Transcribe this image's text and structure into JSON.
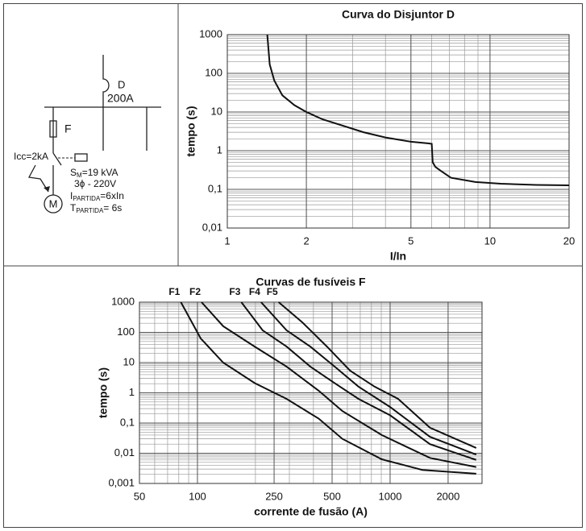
{
  "diagram": {
    "breaker_name": "D",
    "breaker_rating": "200A",
    "fuse_name": "F",
    "short_circuit": "Icc=2kA",
    "s_m": {
      "main": "S",
      "sub": "M",
      "rest": "=19 kVA"
    },
    "supply": "3ϕ - 220V",
    "i_start": {
      "main": "I",
      "sub": "PARTIDA",
      "rest": "=6xIn"
    },
    "t_start": {
      "main": "T",
      "sub": "PARTIDA",
      "rest": "= 6s"
    },
    "motor": "M"
  },
  "chart_data": [
    {
      "type": "line",
      "title": "Curva do Disjuntor D",
      "x_label": "I/In",
      "y_label": "tempo (s)",
      "xlog": true,
      "ylog": true,
      "grid": true,
      "minor_grid": true,
      "xlim": [
        1,
        20
      ],
      "ylim": [
        0.01,
        1000
      ],
      "xticks": [
        1,
        2,
        5,
        10,
        20
      ],
      "yticks": [
        {
          "value": 0.01,
          "label": "0,01"
        },
        {
          "value": 0.1,
          "label": "0,1"
        },
        1,
        10,
        100,
        1000
      ],
      "series": [
        {
          "color": "#111111",
          "x": [
            1.42,
            1.45,
            1.51,
            1.62,
            1.8,
            2,
            2.3,
            3.3,
            4,
            5,
            5.8,
            6,
            6.05,
            6.2,
            6.5,
            7.1,
            8.8,
            11,
            15,
            20
          ],
          "values": [
            1000,
            170,
            65,
            27,
            15,
            10,
            6.5,
            3,
            2.2,
            1.7,
            1.55,
            1.5,
            0.5,
            0.38,
            0.3,
            0.2,
            0.155,
            0.14,
            0.13,
            0.127
          ]
        }
      ]
    },
    {
      "type": "line",
      "title": "Curvas de fusíveis F",
      "x_label": "corrente de fusão (A)",
      "y_label": "tempo (s)",
      "xlog": true,
      "ylog": true,
      "grid": true,
      "minor_grid": true,
      "xlim": [
        50,
        3000
      ],
      "ylim": [
        0.001,
        1000
      ],
      "xticks": [
        50,
        100,
        250,
        500,
        1000,
        2000
      ],
      "yticks": [
        {
          "value": 0.001,
          "label": "0,001"
        },
        {
          "value": 0.01,
          "label": "0,01"
        },
        {
          "value": 0.1,
          "label": "0,1"
        },
        1,
        10,
        100,
        1000
      ],
      "series": [
        {
          "name": "F1",
          "color": "#111111",
          "x": [
            82,
            104,
            136,
            198,
            290,
            426,
            565,
            905,
            1470,
            2800
          ],
          "values": [
            1000,
            63,
            10,
            2.1,
            0.63,
            0.14,
            0.03,
            0.0063,
            0.0028,
            0.0021
          ]
        },
        {
          "name": "F2",
          "color": "#111111",
          "x": [
            105,
            136,
            198,
            290,
            426,
            565,
            905,
            1610,
            2800
          ],
          "values": [
            1000,
            160,
            34,
            7.4,
            1.17,
            0.25,
            0.04,
            0.007,
            0.0035
          ]
        },
        {
          "name": "F3",
          "color": "#111111",
          "x": [
            169,
            218,
            290,
            385,
            515,
            685,
            1000,
            1610,
            2800
          ],
          "values": [
            1000,
            117,
            34,
            7.4,
            2.1,
            0.63,
            0.18,
            0.02,
            0.006
          ]
        },
        {
          "name": "F4",
          "color": "#111111",
          "x": [
            214,
            290,
            385,
            515,
            685,
            1000,
            1610,
            2800
          ],
          "values": [
            1000,
            117,
            34,
            7.4,
            1.6,
            0.34,
            0.035,
            0.009
          ]
        },
        {
          "name": "F5",
          "color": "#111111",
          "x": [
            264,
            350,
            470,
            620,
            830,
            1100,
            1610,
            2800
          ],
          "values": [
            1000,
            215,
            34,
            5.4,
            1.6,
            0.63,
            0.07,
            0.015
          ]
        }
      ]
    }
  ]
}
